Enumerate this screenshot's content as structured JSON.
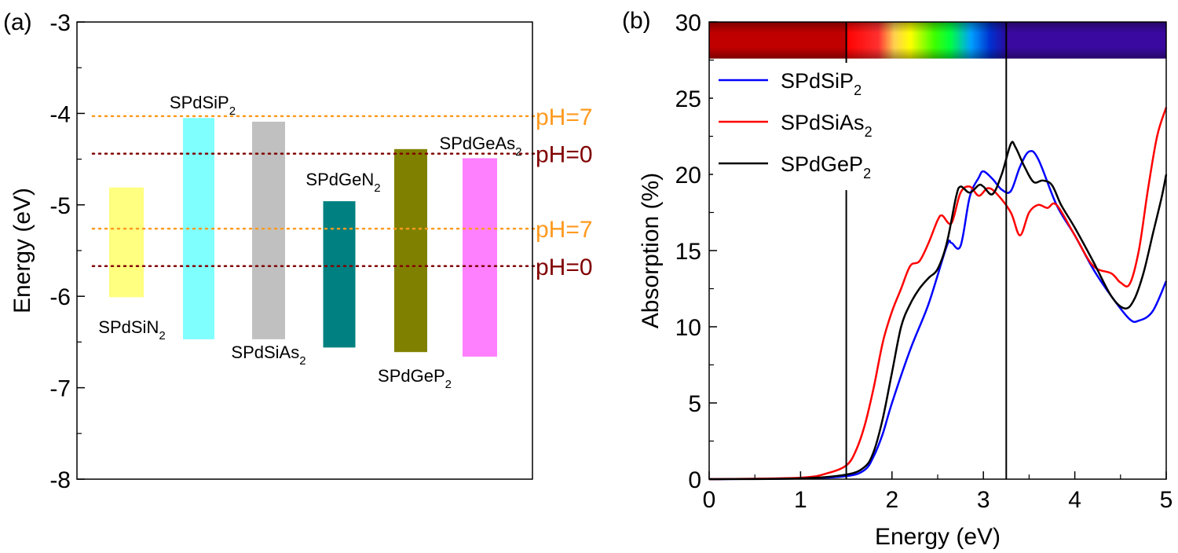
{
  "panel_a": {
    "label": "(a)",
    "chart_data": {
      "type": "bar",
      "ylabel": "Energy (eV)",
      "ylim": [
        -8,
        -3
      ],
      "yticks": [
        -3,
        -4,
        -5,
        -6,
        -7,
        -8
      ],
      "series": [
        {
          "name": "SPdSiN",
          "sub": "2",
          "top": -4.81,
          "bottom": -6.01,
          "color": "#ffff80"
        },
        {
          "name": "SPdSiP",
          "sub": "2",
          "top": -4.05,
          "bottom": -6.47,
          "color": "#80ffff"
        },
        {
          "name": "SPdSiAs",
          "sub": "2",
          "top": -4.09,
          "bottom": -6.47,
          "color": "#c0c0c0"
        },
        {
          "name": "SPdGeN",
          "sub": "2",
          "top": -4.96,
          "bottom": -6.56,
          "color": "#008080"
        },
        {
          "name": "SPdGeP",
          "sub": "2",
          "top": -4.39,
          "bottom": -6.61,
          "color": "#808000"
        },
        {
          "name": "SPdGeAs",
          "sub": "2",
          "top": -4.49,
          "bottom": -6.66,
          "color": "#ff80ff"
        }
      ],
      "reference_lines": [
        {
          "label": "pH=7",
          "y": -4.03,
          "color": "#ff9a1e"
        },
        {
          "label": "pH=0",
          "y": -4.44,
          "color": "#800000"
        },
        {
          "label": "pH=7",
          "y": -5.26,
          "color": "#ff9a1e"
        },
        {
          "label": "pH=0",
          "y": -5.67,
          "color": "#800000"
        }
      ]
    }
  },
  "panel_b": {
    "label": "(b)",
    "chart_data": {
      "type": "line",
      "xlabel": "Energy (eV)",
      "ylabel": "Absorption (%)",
      "xlim": [
        0,
        5
      ],
      "ylim": [
        0,
        30
      ],
      "xticks": [
        0,
        1,
        2,
        3,
        4,
        5
      ],
      "yticks": [
        0,
        5,
        10,
        15,
        20,
        25,
        30
      ],
      "vertical_lines": [
        1.5,
        3.25
      ],
      "spectrum_bar": {
        "ir_color": "#c00000",
        "uv_color": "#3a0aa0",
        "range": [
          27.6,
          30
        ]
      },
      "legend_position": "top-left",
      "series": [
        {
          "name": "SPdSiP",
          "sub": "2",
          "color": "#0000ff",
          "x": [
            0,
            1.0,
            1.5,
            1.7,
            1.8,
            1.9,
            2.0,
            2.2,
            2.4,
            2.6,
            2.65,
            2.75,
            2.85,
            2.95,
            3.0,
            3.1,
            3.2,
            3.3,
            3.4,
            3.5,
            3.6,
            3.8,
            4.0,
            4.2,
            4.4,
            4.6,
            4.7,
            4.85,
            5.0
          ],
          "y": [
            0,
            0.05,
            0.2,
            0.6,
            1.5,
            3.0,
            5.0,
            8.5,
            11.5,
            15.3,
            15.5,
            15.3,
            18.5,
            19.8,
            20.2,
            19.7,
            19.0,
            18.9,
            20.5,
            21.5,
            21.0,
            18.0,
            16.0,
            13.8,
            12.0,
            10.5,
            10.4,
            11.0,
            13.0
          ]
        },
        {
          "name": "SPdSiAs",
          "sub": "2",
          "color": "#ff0000",
          "x": [
            0,
            1.0,
            1.3,
            1.5,
            1.6,
            1.7,
            1.8,
            1.9,
            2.0,
            2.1,
            2.2,
            2.3,
            2.4,
            2.5,
            2.55,
            2.65,
            2.75,
            2.85,
            2.95,
            3.05,
            3.15,
            3.3,
            3.4,
            3.5,
            3.6,
            3.7,
            3.8,
            4.0,
            4.2,
            4.4,
            4.5,
            4.6,
            4.7,
            4.8,
            4.9,
            5.0
          ],
          "y": [
            0,
            0.1,
            0.4,
            0.9,
            1.8,
            3.5,
            6.0,
            9.0,
            11.0,
            12.5,
            14.0,
            14.3,
            15.5,
            17.0,
            17.3,
            16.8,
            18.8,
            19.2,
            18.6,
            19.1,
            18.7,
            17.5,
            16.0,
            17.5,
            18.0,
            17.8,
            18.0,
            16.0,
            14.0,
            13.5,
            12.9,
            12.8,
            15.0,
            19.0,
            22.5,
            24.4
          ]
        },
        {
          "name": "SPdGeP",
          "sub": "2",
          "color": "#000000",
          "x": [
            0,
            1.0,
            1.5,
            1.7,
            1.8,
            1.9,
            2.0,
            2.1,
            2.2,
            2.3,
            2.4,
            2.5,
            2.6,
            2.7,
            2.75,
            2.85,
            2.95,
            3.0,
            3.1,
            3.2,
            3.3,
            3.35,
            3.45,
            3.55,
            3.65,
            3.75,
            3.85,
            4.0,
            4.2,
            4.4,
            4.55,
            4.65,
            4.75,
            4.85,
            4.95,
            5.0
          ],
          "y": [
            0,
            0.05,
            0.3,
            0.8,
            1.8,
            4.0,
            7.0,
            10.0,
            11.5,
            12.5,
            13.2,
            13.8,
            15.5,
            18.5,
            19.2,
            18.8,
            19.3,
            19.2,
            18.7,
            20.0,
            22.0,
            21.8,
            20.5,
            19.5,
            19.6,
            19.3,
            18.0,
            16.5,
            14.3,
            12.0,
            11.2,
            11.8,
            13.5,
            16.0,
            18.5,
            20.0
          ]
        }
      ]
    }
  }
}
